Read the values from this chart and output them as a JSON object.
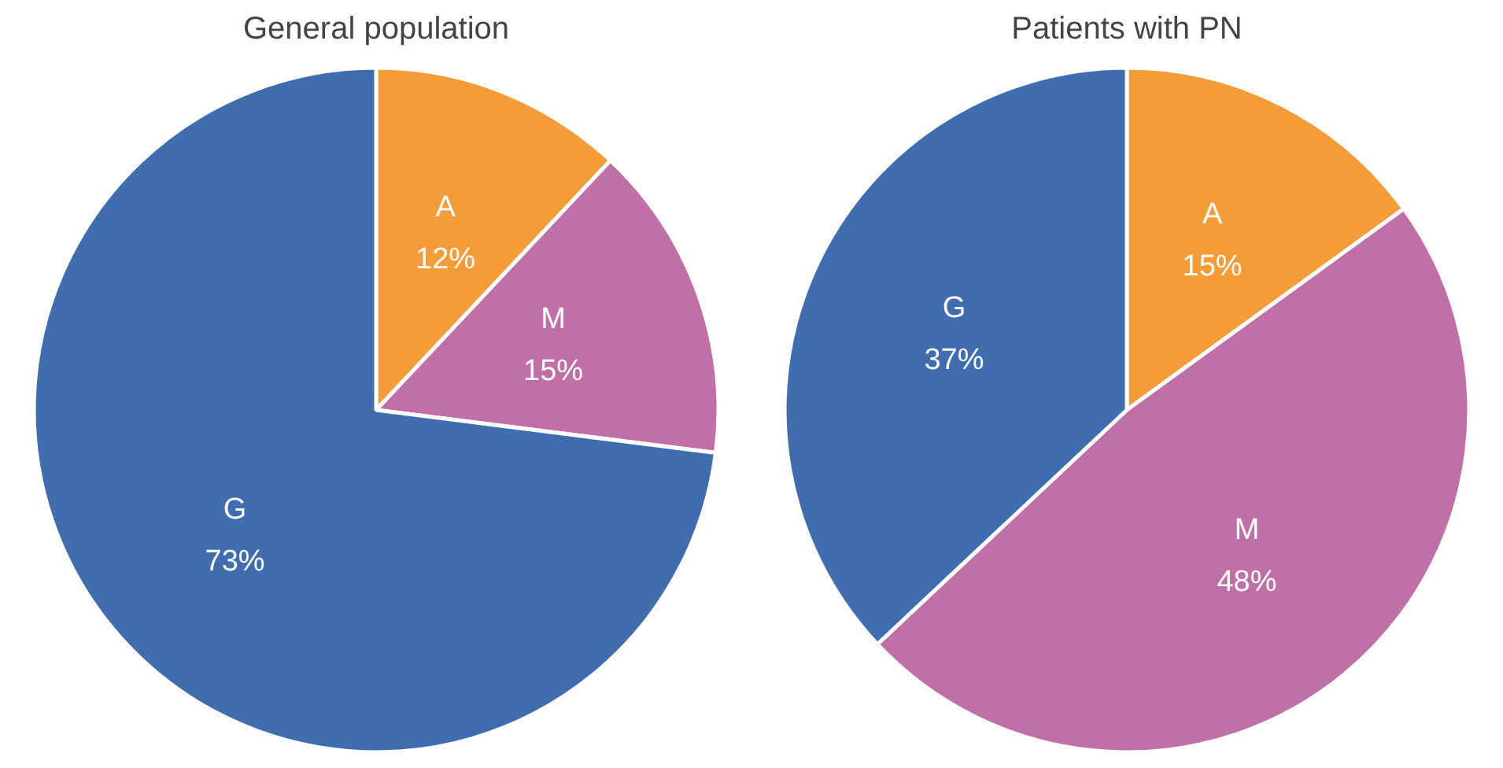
{
  "chart_data": [
    {
      "type": "pie",
      "title": "General population",
      "categories": [
        "A",
        "M",
        "G"
      ],
      "values": [
        12,
        15,
        73
      ],
      "value_labels": [
        "12%",
        "15%",
        "73%"
      ],
      "colors": [
        "#f39c38",
        "#c070a6",
        "#3f6db0"
      ]
    },
    {
      "type": "pie",
      "title": "Patients with PN",
      "categories": [
        "A",
        "M",
        "G"
      ],
      "values": [
        15,
        48,
        37
      ],
      "value_labels": [
        "15%",
        "48%",
        "37%"
      ],
      "colors": [
        "#f39c38",
        "#c070a6",
        "#3f6db0"
      ]
    }
  ]
}
